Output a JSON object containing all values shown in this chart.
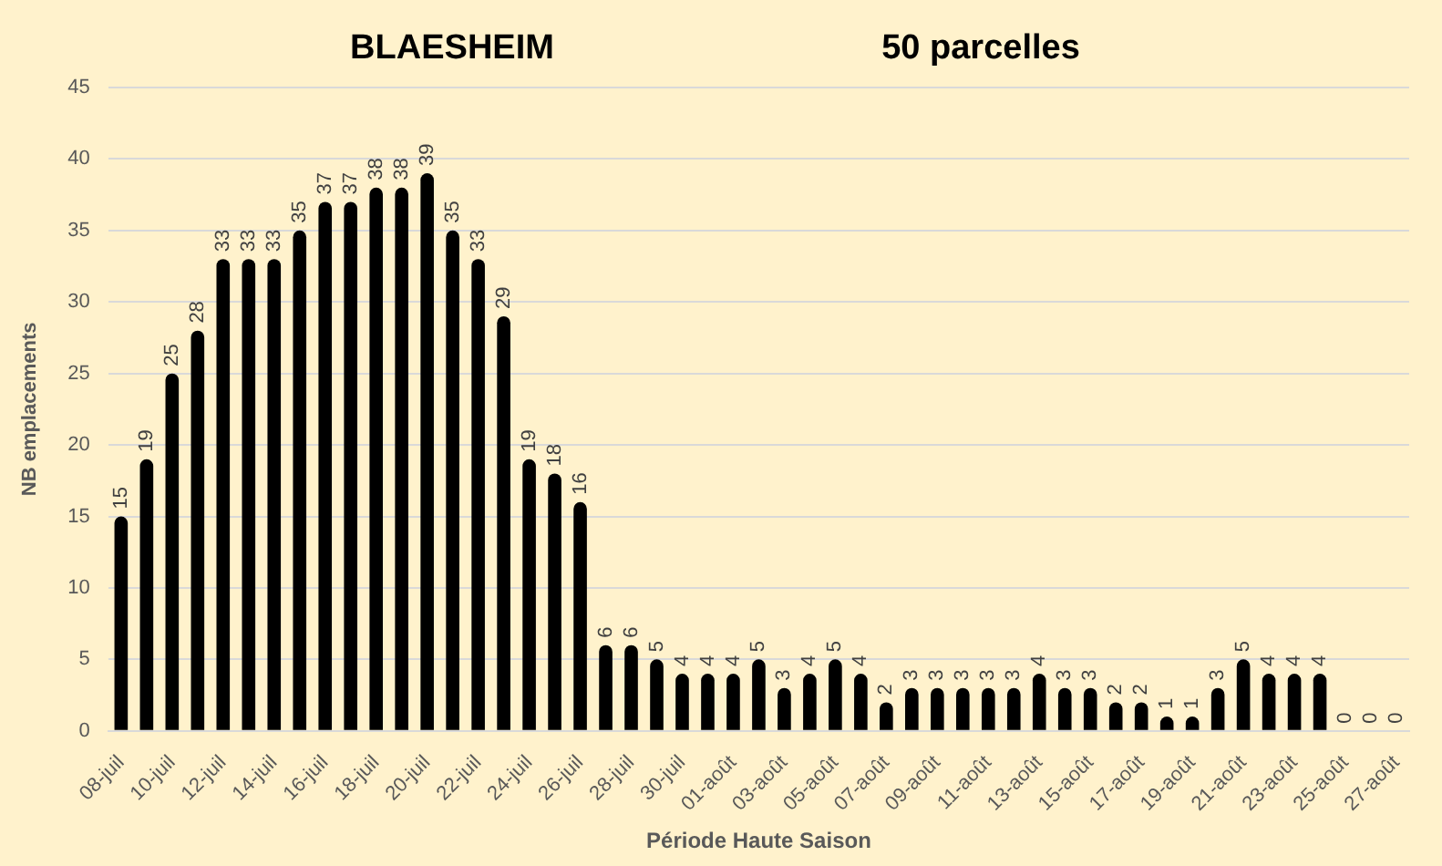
{
  "chart_data": {
    "type": "bar",
    "title": "BLAESHEIM",
    "subtitle": "50 parcelles",
    "xlabel": "Période Haute Saison",
    "ylabel": "NB emplacements",
    "categories": [
      "08-juil",
      null,
      "10-juil",
      null,
      "12-juil",
      null,
      "14-juil",
      null,
      "16-juil",
      null,
      "18-juil",
      null,
      "20-juil",
      null,
      "22-juil",
      null,
      "24-juil",
      null,
      "26-juil",
      null,
      "28-juil",
      null,
      "30-juil",
      null,
      "01-août",
      null,
      "03-août",
      null,
      "05-août",
      null,
      "07-août",
      null,
      "09-août",
      null,
      "11-août",
      null,
      "13-août",
      null,
      "15-août",
      null,
      "17-août",
      null,
      "19-août",
      null,
      "21-août",
      null,
      "23-août",
      null,
      "25-août",
      null,
      "27-août"
    ],
    "values": [
      15,
      19,
      25,
      28,
      33,
      33,
      33,
      35,
      37,
      37,
      38,
      38,
      39,
      35,
      33,
      29,
      19,
      18,
      16,
      6,
      6,
      5,
      4,
      4,
      4,
      5,
      3,
      4,
      5,
      4,
      2,
      3,
      3,
      3,
      3,
      3,
      4,
      3,
      3,
      2,
      2,
      1,
      1,
      3,
      5,
      4,
      4,
      4,
      0,
      0,
      0
    ],
    "color": "#000000",
    "ylim": [
      0,
      45
    ],
    "yticks": [
      0,
      5,
      10,
      15,
      20,
      25,
      30,
      35,
      40,
      45
    ],
    "grid": "y",
    "data_labels": true
  }
}
